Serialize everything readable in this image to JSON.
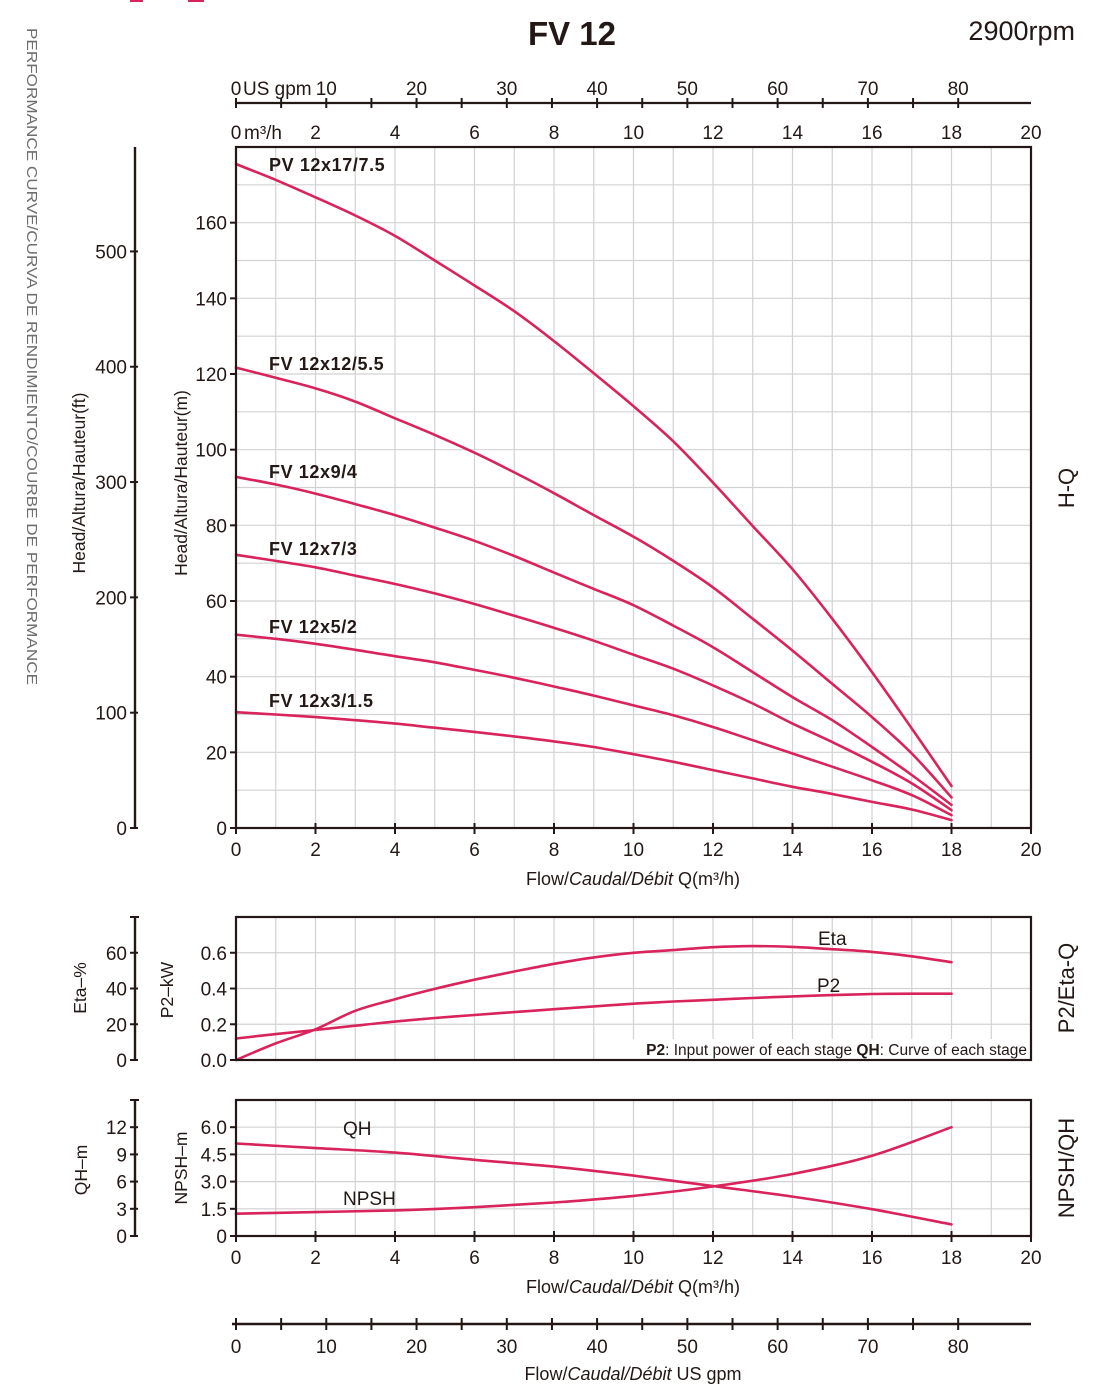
{
  "page": {
    "title": "FV 12",
    "speed": "2900rpm",
    "side_title": "PERFORMANCE CURVE/CURVA DE RENDIMIENTO/COURBE DE PERFORMANCE"
  },
  "colors": {
    "curve": "#d8245a",
    "axis": "#231815",
    "grid": "#d2d2d2",
    "side_title": "#6e6e6e",
    "note_bg": "#ffffff"
  },
  "chart_data": [
    {
      "type": "line",
      "title": "H-Q",
      "grid": true,
      "xlim": [
        0,
        20
      ],
      "ylim": [
        0,
        180
      ],
      "xticks": [
        "0",
        "2",
        "4",
        "6",
        "8",
        "10",
        "12",
        "14",
        "16",
        "18",
        "20"
      ],
      "yticks": [
        "0",
        "20",
        "40",
        "60",
        "80",
        "100",
        "120",
        "140",
        "160"
      ],
      "ylabel": "Head/Altura/Hauteur(m)",
      "ylabel_secondary": "Head/Altura/Hauteur(ft)",
      "yticks_secondary": [
        "0",
        "100",
        "200",
        "300",
        "400",
        "500"
      ],
      "secondary_unit": "ft",
      "xlabel": [
        "Flow/",
        "Caudal/Débit",
        " Q(m³/h)"
      ],
      "top_axis_m3h": {
        "label": "m³/h",
        "ticks": [
          "0",
          "2",
          "4",
          "6",
          "8",
          "10",
          "12",
          "14",
          "16",
          "18",
          "20"
        ]
      },
      "top_axis_gpm": {
        "label": "US gpm",
        "ticks": [
          "0",
          "10",
          "20",
          "30",
          "40",
          "50",
          "60",
          "70",
          "80"
        ],
        "minor_step": 5
      },
      "x": [
        0,
        1,
        2,
        3,
        4,
        5,
        6,
        7,
        8,
        9,
        10,
        11,
        12,
        13,
        14,
        15,
        16,
        17,
        18
      ],
      "series": [
        {
          "name": "PV 12x17/7.5",
          "values": [
            175.5,
            171.3,
            166.7,
            161.9,
            156.5,
            150.0,
            143.4,
            136.6,
            128.7,
            120.2,
            111.5,
            102.2,
            91.3,
            79.8,
            68.4,
            55.3,
            41.2,
            26.3,
            11.1
          ]
        },
        {
          "name": "FV 12x12/5.5",
          "values": [
            121.7,
            119.0,
            116.2,
            112.7,
            108.3,
            103.9,
            99.2,
            94.0,
            88.5,
            82.7,
            77.0,
            70.6,
            63.6,
            55.3,
            46.9,
            38.1,
            29.3,
            19.7,
            8.1
          ]
        },
        {
          "name": "FV 12x9/4",
          "values": [
            92.8,
            90.8,
            88.4,
            85.6,
            82.7,
            79.4,
            75.9,
            71.9,
            67.5,
            63.2,
            58.9,
            53.5,
            47.8,
            41.2,
            34.6,
            28.5,
            21.4,
            14.0,
            6.1
          ]
        },
        {
          "name": "FV 12x7/3",
          "values": [
            72.2,
            70.6,
            68.9,
            66.7,
            64.5,
            62.0,
            59.2,
            56.1,
            52.9,
            49.5,
            45.8,
            42.1,
            37.7,
            32.9,
            27.6,
            22.7,
            17.5,
            11.8,
            4.7
          ]
        },
        {
          "name": "FV 12x5/2",
          "values": [
            51.1,
            50.0,
            48.7,
            47.1,
            45.4,
            43.8,
            41.8,
            39.7,
            37.4,
            35.0,
            32.4,
            29.8,
            26.7,
            23.2,
            19.7,
            16.2,
            12.6,
            8.7,
            3.4
          ]
        },
        {
          "name": "FV 12x3/1.5",
          "values": [
            30.6,
            30.0,
            29.3,
            28.5,
            27.6,
            26.5,
            25.4,
            24.2,
            22.9,
            21.4,
            19.5,
            17.5,
            15.3,
            13.1,
            10.9,
            9.0,
            6.9,
            4.9,
            2.1
          ]
        }
      ]
    },
    {
      "type": "line",
      "title": "P2/Eta-Q",
      "grid": true,
      "xlim": [
        0,
        20
      ],
      "ylim": [
        0,
        0.8
      ],
      "ylabel": "P2–kW",
      "yticks": [
        "0.0",
        "0.2",
        "0.4",
        "0.6"
      ],
      "ylim_secondary": [
        0,
        80
      ],
      "ylabel_secondary": "Eta–%",
      "yticks_secondary": [
        "0",
        "20",
        "40",
        "60"
      ],
      "x": [
        0,
        1,
        2,
        3,
        4,
        5,
        6,
        7,
        8,
        9,
        10,
        11,
        12,
        13,
        14,
        15,
        16,
        17,
        18
      ],
      "series": [
        {
          "name": "Eta",
          "axis": "secondary",
          "unit": "%",
          "values": [
            0,
            9.3,
            17.2,
            27.5,
            34.0,
            39.8,
            44.9,
            49.5,
            53.8,
            57.4,
            60.0,
            61.5,
            63.1,
            63.7,
            63.3,
            62.0,
            60.5,
            58.0,
            54.7
          ]
        },
        {
          "name": "P2",
          "axis": "primary",
          "unit": "kW",
          "values": [
            0.12,
            0.145,
            0.168,
            0.192,
            0.215,
            0.235,
            0.252,
            0.268,
            0.284,
            0.3,
            0.315,
            0.327,
            0.337,
            0.347,
            0.356,
            0.363,
            0.369,
            0.371,
            0.371
          ]
        }
      ],
      "note": {
        "p2_key": "P2",
        "p2_text": ": Input power of each stage ",
        "qh_key": "QH",
        "qh_text": ": Curve of each stage"
      }
    },
    {
      "type": "line",
      "title": "NPSH/QH",
      "grid": true,
      "xlim": [
        0,
        20
      ],
      "ylim": [
        0,
        7.5
      ],
      "ylabel": "NPSH–m",
      "yticks": [
        "0",
        "1.5",
        "3.0",
        "4.5",
        "6.0"
      ],
      "ylim_secondary": [
        0,
        15
      ],
      "ylabel_secondary": "QH–m",
      "yticks_secondary": [
        "0",
        "3",
        "6",
        "9",
        "12"
      ],
      "xticks": [
        "0",
        "2",
        "4",
        "6",
        "8",
        "10",
        "12",
        "14",
        "16",
        "18",
        "20"
      ],
      "xlabel": [
        "Flow/",
        "Caudal/Débit",
        " Q(m³/h)"
      ],
      "x": [
        0,
        2,
        4,
        6,
        8,
        10,
        12,
        14,
        16,
        18
      ],
      "series": [
        {
          "name": "QH",
          "axis": "secondary",
          "unit": "m",
          "values": [
            10.2,
            9.7,
            9.2,
            8.4,
            7.65,
            6.66,
            5.5,
            4.35,
            2.96,
            1.28
          ]
        },
        {
          "name": "NPSH",
          "axis": "primary",
          "unit": "m",
          "values": [
            1.23,
            1.32,
            1.41,
            1.59,
            1.85,
            2.21,
            2.73,
            3.42,
            4.43,
            6.0
          ]
        }
      ]
    }
  ],
  "bottom_gpm_axis": {
    "ticks": [
      "0",
      "10",
      "20",
      "30",
      "40",
      "50",
      "60",
      "70",
      "80"
    ],
    "minor_step": 5,
    "xlabel": [
      "Flow/",
      "Caudal/Débit",
      "  US gpm"
    ]
  }
}
